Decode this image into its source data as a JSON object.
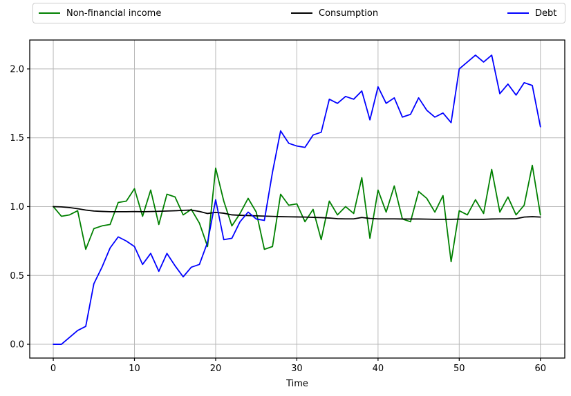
{
  "legend": {
    "items": [
      {
        "label": "Non-financial income",
        "color": "#008000"
      },
      {
        "label": "Consumption",
        "color": "#000000"
      },
      {
        "label": "Debt",
        "color": "#0000ff"
      }
    ]
  },
  "chart_data": {
    "type": "line",
    "title": "",
    "xlabel": "Time",
    "ylabel": "",
    "grid": true,
    "legend_position": "top-outside-horizontal",
    "xlim": [
      -2.9,
      63.0
    ],
    "ylim": [
      -0.1,
      2.21
    ],
    "xticks": [
      0,
      10,
      20,
      30,
      40,
      50,
      60
    ],
    "xtick_labels": [
      "0",
      "10",
      "20",
      "30",
      "40",
      "50",
      "60"
    ],
    "yticks": [
      0.0,
      0.5,
      1.0,
      1.5,
      2.0
    ],
    "ytick_labels": [
      "0.0",
      "0.5",
      "1.0",
      "1.5",
      "2.0"
    ],
    "grid_color": "#b8b8b8",
    "frame_color": "#000000",
    "x": [
      0,
      1,
      2,
      3,
      4,
      5,
      6,
      7,
      8,
      9,
      10,
      11,
      12,
      13,
      14,
      15,
      16,
      17,
      18,
      19,
      20,
      21,
      22,
      23,
      24,
      25,
      26,
      27,
      28,
      29,
      30,
      31,
      32,
      33,
      34,
      35,
      36,
      37,
      38,
      39,
      40,
      41,
      42,
      43,
      44,
      45,
      46,
      47,
      48,
      49,
      50,
      51,
      52,
      53,
      54,
      55,
      56,
      57,
      58,
      59,
      60
    ],
    "series": [
      {
        "name": "Non-financial income",
        "color": "#008000",
        "values": [
          1.0,
          0.93,
          0.94,
          0.97,
          0.69,
          0.84,
          0.86,
          0.87,
          1.03,
          1.04,
          1.13,
          0.93,
          1.12,
          0.87,
          1.09,
          1.07,
          0.94,
          0.98,
          0.88,
          0.71,
          1.28,
          1.04,
          0.86,
          0.95,
          1.06,
          0.96,
          0.69,
          0.71,
          1.09,
          1.01,
          1.02,
          0.89,
          0.98,
          0.76,
          1.04,
          0.94,
          1.0,
          0.95,
          1.21,
          0.77,
          1.12,
          0.96,
          1.15,
          0.91,
          0.89,
          1.11,
          1.06,
          0.96,
          1.08,
          0.6,
          0.97,
          0.94,
          1.05,
          0.95,
          1.27,
          0.96,
          1.07,
          0.94,
          1.01,
          1.3,
          0.94
        ]
      },
      {
        "name": "Consumption",
        "color": "#000000",
        "values": [
          1.0,
          0.998,
          0.993,
          0.985,
          0.975,
          0.968,
          0.965,
          0.963,
          0.963,
          0.963,
          0.964,
          0.963,
          0.964,
          0.966,
          0.968,
          0.97,
          0.973,
          0.975,
          0.965,
          0.95,
          0.958,
          0.952,
          0.94,
          0.937,
          0.935,
          0.933,
          0.931,
          0.929,
          0.927,
          0.926,
          0.925,
          0.924,
          0.922,
          0.92,
          0.917,
          0.912,
          0.911,
          0.911,
          0.921,
          0.914,
          0.911,
          0.911,
          0.911,
          0.91,
          0.91,
          0.91,
          0.909,
          0.908,
          0.908,
          0.908,
          0.909,
          0.908,
          0.908,
          0.908,
          0.91,
          0.911,
          0.911,
          0.912,
          0.924,
          0.927,
          0.924
        ]
      },
      {
        "name": "Debt",
        "color": "#0000ff",
        "values": [
          0.0,
          0.0,
          0.05,
          0.1,
          0.13,
          0.44,
          0.56,
          0.7,
          0.78,
          0.75,
          0.71,
          0.58,
          0.66,
          0.53,
          0.66,
          0.57,
          0.49,
          0.56,
          0.58,
          0.74,
          1.05,
          0.76,
          0.77,
          0.89,
          0.96,
          0.91,
          0.9,
          1.25,
          1.55,
          1.46,
          1.44,
          1.43,
          1.52,
          1.54,
          1.78,
          1.75,
          1.8,
          1.78,
          1.84,
          1.63,
          1.87,
          1.75,
          1.79,
          1.65,
          1.67,
          1.79,
          1.7,
          1.65,
          1.68,
          1.61,
          2.0,
          2.05,
          2.1,
          2.05,
          2.1,
          1.82,
          1.89,
          1.81,
          1.9,
          1.88,
          1.58
        ]
      }
    ]
  }
}
